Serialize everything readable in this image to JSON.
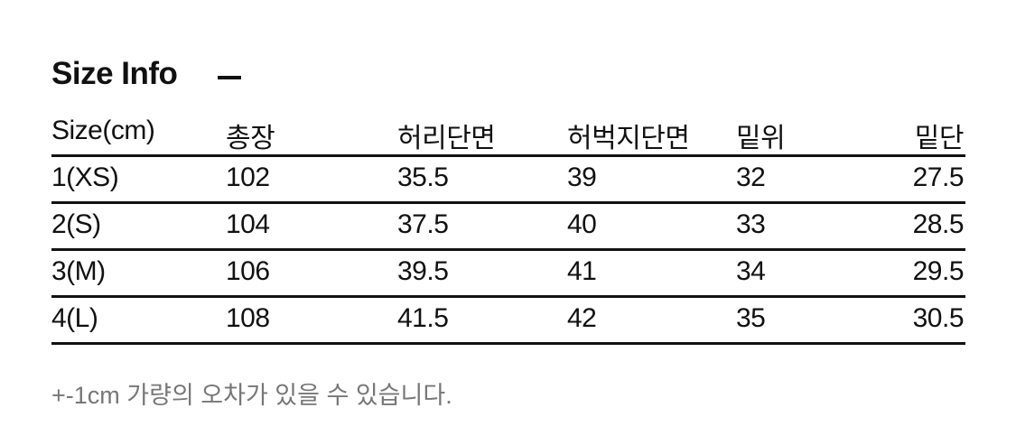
{
  "title": "Size Info",
  "headers": [
    "Size(cm)",
    "총장",
    "허리단면",
    "허벅지단면",
    "밑위",
    "밑단"
  ],
  "rows": [
    [
      "1(XS)",
      "102",
      "35.5",
      "39",
      "32",
      "27.5"
    ],
    [
      "2(S)",
      "104",
      "37.5",
      "40",
      "33",
      "28.5"
    ],
    [
      "3(M)",
      "106",
      "39.5",
      "41",
      "34",
      "29.5"
    ],
    [
      "4(L)",
      "108",
      "41.5",
      "42",
      "35",
      "30.5"
    ]
  ],
  "note": "+-1cm 가량의 오차가 있을 수 있습니다."
}
